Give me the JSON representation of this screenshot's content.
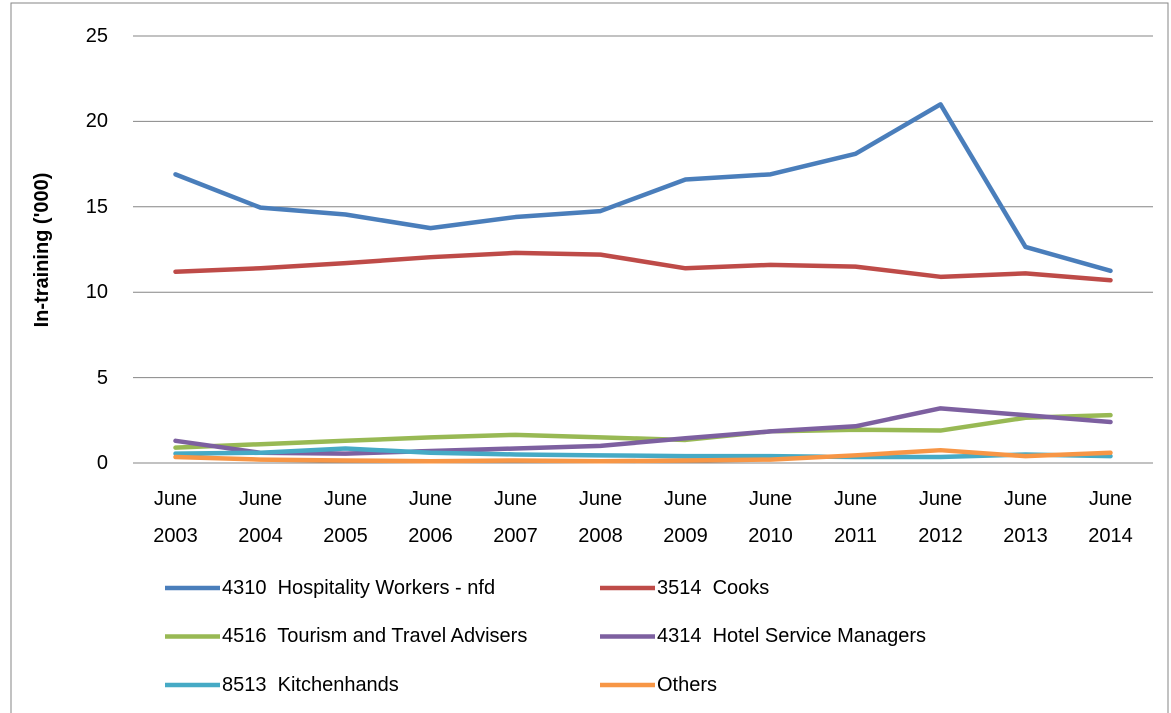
{
  "chart_data": {
    "type": "line",
    "y_label": "In-training ('000)",
    "categories": [
      "June 2003",
      "June 2004",
      "June 2005",
      "June 2006",
      "June 2007",
      "June 2008",
      "June 2009",
      "June 2010",
      "June 2011",
      "June 2012",
      "June 2013",
      "June 2014"
    ],
    "series": [
      {
        "name": "4310  Hospitality Workers - nfd",
        "color": "#4a7ebb",
        "values": [
          16.9,
          14.95,
          14.55,
          13.75,
          14.4,
          14.75,
          16.6,
          16.9,
          18.1,
          21.0,
          12.65,
          11.25
        ]
      },
      {
        "name": "3514  Cooks",
        "color": "#be4b48",
        "values": [
          11.2,
          11.4,
          11.7,
          12.05,
          12.3,
          12.2,
          11.4,
          11.6,
          11.5,
          10.9,
          11.1,
          10.7
        ]
      },
      {
        "name": "4516  Tourism and Travel Advisers",
        "color": "#98b954",
        "values": [
          0.9,
          1.1,
          1.3,
          1.5,
          1.65,
          1.5,
          1.35,
          1.85,
          1.95,
          1.9,
          2.65,
          2.8
        ]
      },
      {
        "name": "4314  Hotel Service Managers",
        "color": "#7d60a0",
        "values": [
          1.3,
          0.6,
          0.55,
          0.7,
          0.85,
          1.0,
          1.45,
          1.85,
          2.15,
          3.2,
          2.8,
          2.4
        ]
      },
      {
        "name": "8513  Kitchenhands",
        "color": "#46aac5",
        "values": [
          0.55,
          0.6,
          0.85,
          0.6,
          0.5,
          0.45,
          0.4,
          0.4,
          0.35,
          0.35,
          0.5,
          0.4
        ]
      },
      {
        "name": "Others",
        "color": "#f79646",
        "values": [
          0.35,
          0.2,
          0.15,
          0.1,
          0.15,
          0.1,
          0.15,
          0.2,
          0.45,
          0.75,
          0.4,
          0.6
        ]
      }
    ],
    "ylim": [
      0,
      25
    ],
    "yticks": [
      0,
      5,
      10,
      15,
      20,
      25
    ],
    "grid": true,
    "legend": "bottom"
  }
}
